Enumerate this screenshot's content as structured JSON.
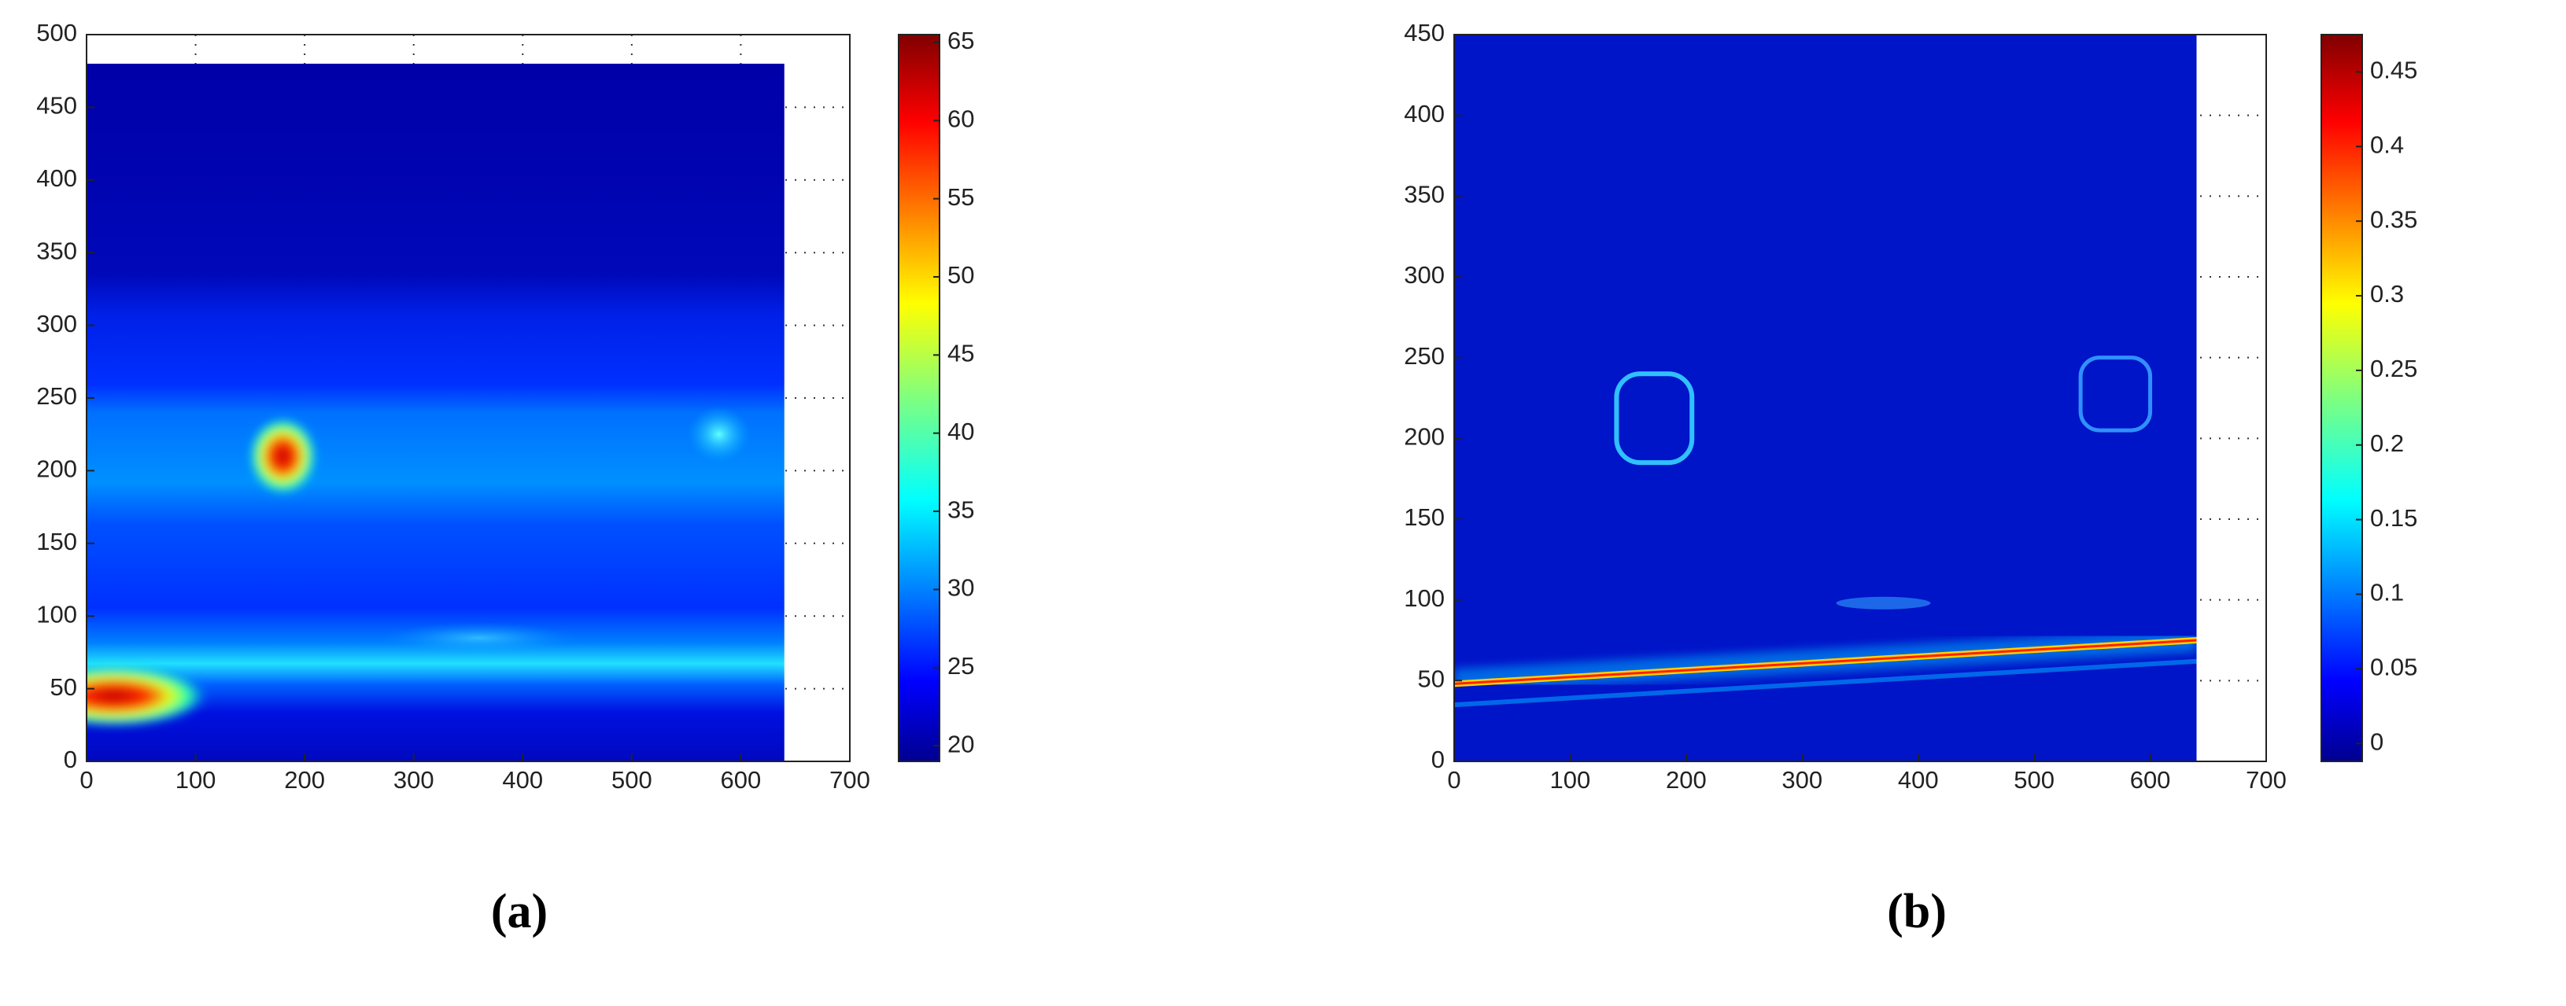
{
  "chart_data": [
    {
      "type": "heatmap",
      "caption": "(a)",
      "colormap": "jet",
      "grid": true,
      "xlim": [
        0,
        700
      ],
      "ylim": [
        0,
        500
      ],
      "xticks": [
        0,
        100,
        200,
        300,
        400,
        500,
        600,
        700
      ],
      "yticks": [
        0,
        50,
        100,
        150,
        200,
        250,
        300,
        350,
        400,
        450,
        500
      ],
      "image_xlim": [
        0,
        640
      ],
      "image_ylim": [
        0,
        480
      ],
      "colorbar": {
        "lim": [
          19,
          65.5
        ],
        "ticks": [
          20,
          25,
          30,
          35,
          40,
          45,
          50,
          55,
          60,
          65
        ]
      }
    },
    {
      "type": "heatmap",
      "caption": "(b)",
      "colormap": "jet",
      "grid": true,
      "xlim": [
        0,
        700
      ],
      "ylim": [
        0,
        450
      ],
      "xticks": [
        0,
        100,
        200,
        300,
        400,
        500,
        600,
        700
      ],
      "yticks": [
        0,
        50,
        100,
        150,
        200,
        250,
        300,
        350,
        400,
        450
      ],
      "image_xlim": [
        0,
        640
      ],
      "image_ylim": [
        0,
        450
      ],
      "colorbar": {
        "lim": [
          -0.012,
          0.475
        ],
        "ticks": [
          0,
          0.05,
          0.1,
          0.15,
          0.2,
          0.25,
          0.3,
          0.35,
          0.4,
          0.45
        ]
      }
    }
  ]
}
